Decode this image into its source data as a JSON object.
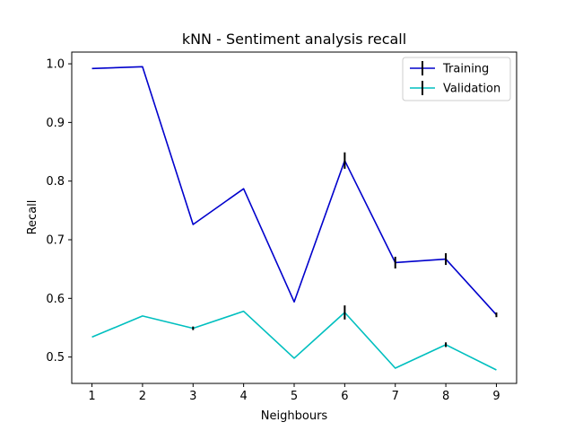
{
  "chart_data": {
    "type": "line",
    "title": "kNN - Sentiment analysis recall",
    "xlabel": "Neighbours",
    "ylabel": "Recall",
    "x": [
      1,
      2,
      3,
      4,
      5,
      6,
      7,
      8,
      9
    ],
    "xticks": [
      "1",
      "2",
      "3",
      "4",
      "5",
      "6",
      "7",
      "8",
      "9"
    ],
    "yticks": [
      "0.5",
      "0.6",
      "0.7",
      "0.8",
      "0.9",
      "1.0"
    ],
    "xlim": [
      0.6,
      9.4
    ],
    "ylim": [
      0.455,
      1.02
    ],
    "grid": false,
    "legend_position": "top-right",
    "series": [
      {
        "name": "Training",
        "color": "#0000cc",
        "values": [
          0.992,
          0.995,
          0.726,
          0.787,
          0.594,
          0.835,
          0.661,
          0.667,
          0.572
        ],
        "errors": [
          0.0,
          0.0,
          0.0,
          0.0,
          0.0,
          0.014,
          0.01,
          0.01,
          0.004
        ]
      },
      {
        "name": "Validation",
        "color": "#00bfbf",
        "values": [
          0.534,
          0.57,
          0.549,
          0.578,
          0.498,
          0.576,
          0.481,
          0.521,
          0.478
        ],
        "errors": [
          0.0,
          0.0,
          0.003,
          0.0,
          0.0,
          0.012,
          0.0,
          0.004,
          0.0
        ]
      }
    ]
  }
}
